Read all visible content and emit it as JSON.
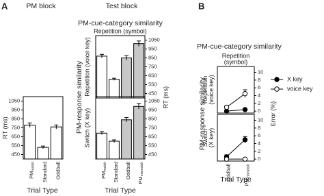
{
  "figure": {
    "panel_A": {
      "label": "A",
      "pm_block": "PM block",
      "test_block": "Test block",
      "similarity": "PM-cue-category similarity",
      "repetition": [
        "Repetition (symbol)"
      ],
      "response_similarity": "PM-response similarity",
      "test_y_label": "RT (ms)"
    },
    "panel_B": {
      "label": "B",
      "similarity": "PM-cue-category similarity",
      "repetition": [
        "Repetition",
        "(symbol)"
      ],
      "response_similarity": "PM-response similarity",
      "y_label": "Error (%)"
    }
  },
  "chart_data": [
    {
      "type": "bar",
      "ylabel": "RT (ms)",
      "xlabel": "Trial Type",
      "categories": [
        {
          "text": "PM",
          "sub": "match"
        },
        "Standard",
        "Oddball"
      ],
      "values": [
        780,
        530,
        760
      ],
      "errors": [
        25,
        15,
        22
      ],
      "colors": [
        "#ffffff",
        "#ffffff",
        "#ffffff"
      ],
      "ylim": [
        400,
        1100
      ],
      "yticks": [
        450,
        550,
        650,
        750,
        850,
        950,
        1050
      ],
      "axis_side": "left"
    },
    {
      "type": "bar",
      "row_label": [
        "Repetition (voice key)"
      ],
      "categories": [
        null,
        null,
        null,
        null
      ],
      "values": [
        870,
        610,
        850,
        1010
      ],
      "errors": [
        20,
        12,
        25,
        30
      ],
      "colors": [
        "#ffffff",
        "#ffffff",
        "#c8c8c8",
        "#c8c8c8"
      ],
      "ylim": [
        400,
        1100
      ],
      "yticks": [
        450,
        550,
        650,
        750,
        850,
        950,
        1050
      ],
      "axis_side": "right"
    },
    {
      "type": "bar",
      "row_label": [
        "Switch (X key)"
      ],
      "xlabel": "Trial Type",
      "categories": [
        {
          "text": "PM",
          "sub": "match"
        },
        "Standard",
        "Oddball",
        {
          "text": "PM",
          "sub": "mismatch"
        }
      ],
      "values": [
        690,
        600,
        840,
        990
      ],
      "errors": [
        18,
        15,
        25,
        30
      ],
      "colors": [
        "#ffffff",
        "#ffffff",
        "#c8c8c8",
        "#c8c8c8"
      ],
      "ylim": [
        400,
        1100
      ],
      "yticks": [
        450,
        550,
        650,
        750,
        850,
        950,
        1050
      ],
      "axis_side": "right"
    },
    {
      "type": "line",
      "row_label": [
        "Repetition",
        "(voice key)"
      ],
      "categories": [
        null,
        null
      ],
      "series": [
        {
          "name": "X key",
          "color": "#000000",
          "fill": "#000000",
          "values": [
            0,
            0.4
          ],
          "errors": [
            0.2,
            0.3
          ]
        },
        {
          "name": "voice key",
          "color": "#000000",
          "fill": "#ffffff",
          "values": [
            1,
            4.5
          ],
          "errors": [
            0.4,
            1
          ]
        }
      ],
      "ylim": [
        -0.5,
        11.5
      ],
      "yticks": [
        0,
        2,
        4,
        6,
        8,
        10
      ],
      "axis_side": "right"
    },
    {
      "type": "line",
      "row_label": [
        "Switch",
        "(X key)"
      ],
      "xlabel": "Trial Type",
      "categories": [
        "Oddball",
        {
          "text": "PM",
          "sub": "mismatch"
        }
      ],
      "series": [
        {
          "color": "#000000",
          "fill": "#000000",
          "values": [
            0.6,
            5
          ],
          "errors": [
            0.5,
            0.8
          ]
        },
        {
          "color": "#000000",
          "fill": "#ffffff",
          "values": [
            0,
            0
          ],
          "errors": [
            0.2,
            0.2
          ]
        }
      ],
      "ylim": [
        -0.5,
        11.5
      ],
      "yticks": [
        0,
        2,
        4,
        6,
        8,
        10
      ],
      "axis_side": "right"
    }
  ]
}
